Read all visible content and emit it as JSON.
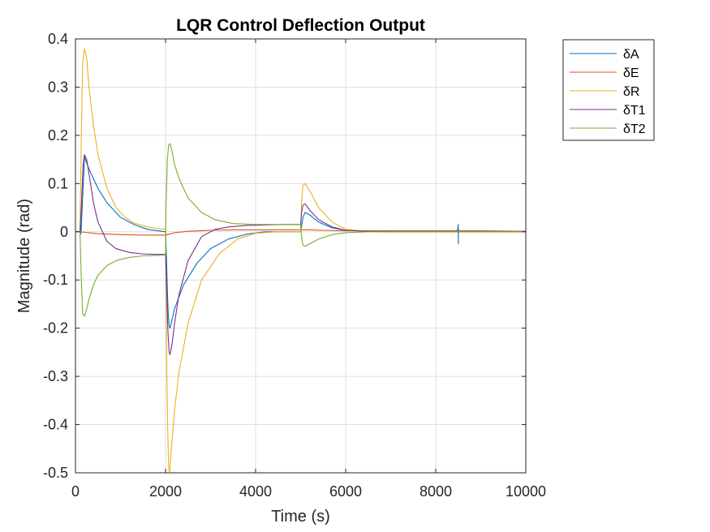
{
  "chart_data": {
    "type": "line",
    "title": "LQR Control Deflection Output",
    "xlabel": "Time (s)",
    "ylabel": "Magnitude (rad)",
    "xlim": [
      0,
      10000
    ],
    "ylim": [
      -0.5,
      0.4
    ],
    "xticks": [
      0,
      2000,
      4000,
      6000,
      8000,
      10000
    ],
    "xtick_labels": [
      "0",
      "2000",
      "4000",
      "6000",
      "8000",
      "10000"
    ],
    "yticks": [
      -0.5,
      -0.4,
      -0.3,
      -0.2,
      -0.1,
      0,
      0.1,
      0.2,
      0.3,
      0.4
    ],
    "ytick_labels": [
      "-0.5",
      "-0.4",
      "-0.3",
      "-0.2",
      "-0.1",
      "0",
      "0.1",
      "0.2",
      "0.3",
      "0.4"
    ],
    "grid": true,
    "legend_position": "outside-top-right",
    "series": [
      {
        "name": "δA",
        "color": "#0072BD",
        "x": [
          0,
          100,
          110,
          120,
          130,
          200,
          300,
          500,
          700,
          1000,
          1300,
          1600,
          2000,
          2020,
          2040,
          2060,
          2080,
          2100,
          2200,
          2400,
          2700,
          3000,
          3400,
          3800,
          4200,
          4600,
          5000,
          5020,
          5050,
          5100,
          5200,
          5400,
          5700,
          6000,
          6500,
          7000,
          8000,
          8480,
          8500,
          8502,
          8504,
          8510,
          8520,
          9000,
          10000
        ],
        "y": [
          0,
          0,
          0.015,
          -0.005,
          0.01,
          0.155,
          0.13,
          0.09,
          0.06,
          0.03,
          0.015,
          0.005,
          0.0,
          -0.05,
          -0.12,
          -0.17,
          -0.195,
          -0.2,
          -0.16,
          -0.11,
          -0.065,
          -0.035,
          -0.015,
          -0.005,
          0.0,
          0.0,
          0.0,
          0.01,
          0.03,
          0.04,
          0.035,
          0.02,
          0.008,
          0.003,
          0.001,
          0.0,
          0.0,
          0.0,
          0.015,
          -0.025,
          0.005,
          0.0,
          0.0,
          0.0,
          0.0
        ]
      },
      {
        "name": "δE",
        "color": "#D95319",
        "x": [
          0,
          100,
          200,
          500,
          1000,
          1500,
          2000,
          2200,
          2500,
          3000,
          3500,
          4000,
          4500,
          5000,
          5200,
          5500,
          6000,
          7000,
          8000,
          9000,
          10000
        ],
        "y": [
          0,
          0,
          -0.001,
          -0.004,
          -0.006,
          -0.007,
          -0.007,
          -0.002,
          0.001,
          0.003,
          0.004,
          0.004,
          0.004,
          0.004,
          0.004,
          0.003,
          0.002,
          0.002,
          0.002,
          0.002,
          0.001
        ]
      },
      {
        "name": "δR",
        "color": "#EDB120",
        "x": [
          0,
          100,
          130,
          160,
          200,
          250,
          300,
          400,
          500,
          700,
          900,
          1100,
          1300,
          1600,
          1800,
          2000,
          2010,
          2030,
          2050,
          2070,
          2090,
          2120,
          2200,
          2300,
          2500,
          2800,
          3200,
          3600,
          4000,
          4500,
          5000,
          5020,
          5050,
          5100,
          5200,
          5400,
          5700,
          6000,
          6500,
          7000,
          8000,
          9000,
          10000
        ],
        "y": [
          0,
          0,
          0.2,
          0.35,
          0.38,
          0.36,
          0.3,
          0.22,
          0.16,
          0.09,
          0.05,
          0.03,
          0.018,
          0.01,
          0.007,
          0.005,
          -0.1,
          -0.3,
          -0.42,
          -0.49,
          -0.5,
          -0.46,
          -0.37,
          -0.29,
          -0.19,
          -0.1,
          -0.045,
          -0.015,
          -0.003,
          0.0,
          0.0,
          0.06,
          0.095,
          0.1,
          0.085,
          0.05,
          0.02,
          0.005,
          0.001,
          0.0,
          0.0,
          0.0,
          0.0
        ]
      },
      {
        "name": "δT1",
        "color": "#7E2F8E",
        "x": [
          0,
          100,
          130,
          170,
          200,
          250,
          300,
          400,
          500,
          700,
          900,
          1200,
          1500,
          1800,
          2000,
          2020,
          2050,
          2080,
          2100,
          2150,
          2200,
          2300,
          2500,
          2800,
          3100,
          3400,
          3800,
          4200,
          4600,
          5000,
          5020,
          5050,
          5100,
          5200,
          5400,
          5700,
          6000,
          6500,
          7000,
          8000,
          9000,
          10000
        ],
        "y": [
          0,
          0,
          0.05,
          0.14,
          0.16,
          0.15,
          0.12,
          0.06,
          0.02,
          -0.02,
          -0.035,
          -0.043,
          -0.046,
          -0.047,
          -0.047,
          -0.1,
          -0.2,
          -0.25,
          -0.255,
          -0.23,
          -0.19,
          -0.13,
          -0.06,
          -0.01,
          0.005,
          0.01,
          0.013,
          0.014,
          0.015,
          0.015,
          0.04,
          0.055,
          0.058,
          0.045,
          0.025,
          0.01,
          0.003,
          0.001,
          0.0,
          0.0,
          0.0,
          0.0
        ]
      },
      {
        "name": "δT2",
        "color": "#77AC30",
        "x": [
          0,
          100,
          130,
          160,
          200,
          250,
          300,
          400,
          500,
          700,
          900,
          1200,
          1500,
          1800,
          2000,
          2010,
          2040,
          2070,
          2100,
          2150,
          2200,
          2300,
          2500,
          2800,
          3100,
          3500,
          4000,
          4500,
          5000,
          5020,
          5050,
          5100,
          5200,
          5400,
          5700,
          6000,
          6500,
          7000,
          8000,
          9000,
          10000
        ],
        "y": [
          0,
          0,
          -0.1,
          -0.17,
          -0.175,
          -0.16,
          -0.14,
          -0.11,
          -0.09,
          -0.07,
          -0.06,
          -0.053,
          -0.05,
          -0.049,
          -0.048,
          0.05,
          0.15,
          0.18,
          0.183,
          0.165,
          0.14,
          0.11,
          0.07,
          0.04,
          0.025,
          0.017,
          0.015,
          0.015,
          0.015,
          -0.01,
          -0.028,
          -0.03,
          -0.025,
          -0.015,
          -0.006,
          -0.002,
          0.0,
          0.0,
          0.0,
          0.0,
          0.0
        ]
      }
    ]
  }
}
